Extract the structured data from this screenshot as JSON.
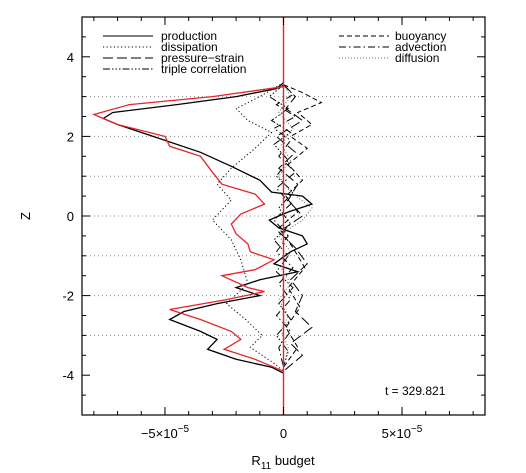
{
  "chart_data": {
    "type": "line",
    "xlabel_main": "R",
    "xlabel_sub": "11",
    "xlabel_rest": " budget",
    "ylabel": "Z",
    "xlim": [
      -8.5e-05,
      8.5e-05
    ],
    "ylim": [
      -5,
      5
    ],
    "x_ticks": [
      {
        "value": -5e-05,
        "mant": "−5×10",
        "exp": "−5"
      },
      {
        "value": 0,
        "mant": "0",
        "exp": ""
      },
      {
        "value": 5e-05,
        "mant": "5×10",
        "exp": "−5"
      }
    ],
    "y_ticks": [
      -4,
      -2,
      0,
      2,
      4
    ],
    "grid": {
      "type": "horizontal-dotted",
      "y": [
        -3,
        -2,
        -1,
        0,
        1,
        2,
        3
      ]
    },
    "annotation": "t = 329.821",
    "legend_left": [
      {
        "name": "production",
        "style": "solid"
      },
      {
        "name": "dissipation",
        "style": "dotted"
      },
      {
        "name": "pressure−strain",
        "style": "longdash"
      },
      {
        "name": "triple correlation",
        "style": "dashdotdotdot"
      }
    ],
    "legend_right": [
      {
        "name": "buoyancy",
        "style": "dashed"
      },
      {
        "name": "advection",
        "style": "dashdot"
      },
      {
        "name": "diffusion",
        "style": "dotted-light"
      }
    ],
    "colors": {
      "red_line": "#e8242b",
      "black": "#000000",
      "grid": "#888888"
    },
    "series": [
      {
        "name": "production",
        "color": "#000000",
        "style": "solid",
        "points": [
          [
            0,
            3.35
          ],
          [
            -3e-06,
            3.2
          ],
          [
            -2e-05,
            3.0
          ],
          [
            -4.5e-05,
            2.8
          ],
          [
            -7.2e-05,
            2.6
          ],
          [
            -7.6e-05,
            2.45
          ],
          [
            -7e-05,
            2.3
          ],
          [
            -5.5e-05,
            2.0
          ],
          [
            -3.5e-05,
            1.6
          ],
          [
            -2.2e-05,
            1.25
          ],
          [
            -1e-05,
            0.9
          ],
          [
            -5e-06,
            0.6
          ],
          [
            8e-06,
            0.5
          ],
          [
            1.2e-05,
            0.3
          ],
          [
            2e-06,
            0.1
          ],
          [
            -6e-06,
            -0.1
          ],
          [
            -2e-06,
            -0.3
          ],
          [
            8e-06,
            -0.5
          ],
          [
            1e-05,
            -0.7
          ],
          [
            3e-06,
            -0.9
          ],
          [
            -4e-06,
            -1.2
          ],
          [
            6e-06,
            -1.4
          ],
          [
            -1e-05,
            -1.6
          ],
          [
            -2e-05,
            -1.8
          ],
          [
            -1e-05,
            -2.0
          ],
          [
            -2.8e-05,
            -2.2
          ],
          [
            -4.2e-05,
            -2.4
          ],
          [
            -4.8e-05,
            -2.6
          ],
          [
            -3.5e-05,
            -2.9
          ],
          [
            -2.8e-05,
            -3.1
          ],
          [
            -3.2e-05,
            -3.35
          ],
          [
            -2e-05,
            -3.6
          ],
          [
            -5e-06,
            -3.8
          ],
          [
            0,
            -3.95
          ]
        ]
      },
      {
        "name": "red",
        "color": "#e8242b",
        "style": "solid",
        "points": [
          [
            0,
            3.25
          ],
          [
            -3e-05,
            3.0
          ],
          [
            -6.5e-05,
            2.8
          ],
          [
            -8e-05,
            2.55
          ],
          [
            -7e-05,
            2.3
          ],
          [
            -5e-05,
            2.0
          ],
          [
            -4.8e-05,
            1.75
          ],
          [
            -3.5e-05,
            1.5
          ],
          [
            -3e-05,
            1.1
          ],
          [
            -2.6e-05,
            0.8
          ],
          [
            -1.2e-05,
            0.55
          ],
          [
            -8e-06,
            0.3
          ],
          [
            -1.8e-05,
            0.05
          ],
          [
            -2.2e-05,
            -0.2
          ],
          [
            -2e-05,
            -0.45
          ],
          [
            -1.5e-05,
            -0.7
          ],
          [
            -1.4e-05,
            -0.9
          ],
          [
            -4e-06,
            -1.1
          ],
          [
            -1.2e-05,
            -1.35
          ],
          [
            -2.6e-05,
            -1.5
          ],
          [
            -1.5e-05,
            -1.8
          ],
          [
            -8e-06,
            -1.9
          ],
          [
            -2.4e-05,
            -2.1
          ],
          [
            -4.8e-05,
            -2.35
          ],
          [
            -3.5e-05,
            -2.6
          ],
          [
            -2.2e-05,
            -2.9
          ],
          [
            -1.8e-05,
            -3.1
          ],
          [
            -2.5e-05,
            -3.35
          ],
          [
            -1.2e-05,
            -3.6
          ],
          [
            0,
            -3.9
          ]
        ]
      },
      {
        "name": "dissipation",
        "color": "#000000",
        "style": "dotted",
        "points": [
          [
            0,
            3.35
          ],
          [
            -1e-05,
            3.0
          ],
          [
            -2e-05,
            2.7
          ],
          [
            -1.5e-05,
            2.4
          ],
          [
            -5e-06,
            2.1
          ],
          [
            -1.2e-05,
            1.7
          ],
          [
            -2.2e-05,
            1.2
          ],
          [
            -2.8e-05,
            0.8
          ],
          [
            -2.2e-05,
            0.4
          ],
          [
            -3e-05,
            -0.1
          ],
          [
            -2.2e-05,
            -0.6
          ],
          [
            -1.8e-05,
            -1.1
          ],
          [
            -1.5e-05,
            -1.7
          ],
          [
            -2.4e-05,
            -2.2
          ],
          [
            -1.6e-05,
            -2.6
          ],
          [
            -9e-06,
            -3.0
          ],
          [
            -1.4e-05,
            -3.3
          ],
          [
            -4e-06,
            -3.7
          ],
          [
            0,
            -3.9
          ]
        ]
      },
      {
        "name": "pressure-strain",
        "color": "#000000",
        "style": "longdash",
        "points": [
          [
            0,
            3.3
          ],
          [
            5e-06,
            3.0
          ],
          [
            1e-06,
            2.7
          ],
          [
            8e-06,
            2.4
          ],
          [
            -3e-06,
            2.0
          ],
          [
            5e-06,
            1.6
          ],
          [
            -2e-06,
            1.2
          ],
          [
            6e-06,
            0.8
          ],
          [
            2e-06,
            0.4
          ],
          [
            8e-06,
            0.0
          ],
          [
            -2e-06,
            -0.4
          ],
          [
            5e-06,
            -0.8
          ],
          [
            1e-05,
            -1.2
          ],
          [
            3e-06,
            -1.6
          ],
          [
            8e-06,
            -2.0
          ],
          [
            5e-06,
            -2.4
          ],
          [
            1.2e-05,
            -2.8
          ],
          [
            3e-06,
            -3.2
          ],
          [
            8e-06,
            -3.5
          ],
          [
            0,
            -3.9
          ]
        ]
      },
      {
        "name": "buoyancy",
        "color": "#000000",
        "style": "dashed",
        "points": [
          [
            0,
            3.3
          ],
          [
            8e-06,
            3.1
          ],
          [
            1.6e-05,
            2.85
          ],
          [
            6e-06,
            2.6
          ],
          [
            1.2e-05,
            2.3
          ],
          [
            3e-06,
            2.0
          ],
          [
            1e-05,
            1.7
          ],
          [
            2e-06,
            1.3
          ],
          [
            8e-06,
            0.9
          ],
          [
            1e-06,
            0.5
          ],
          [
            6e-06,
            0.1
          ],
          [
            -2e-06,
            -0.3
          ],
          [
            4e-06,
            -0.8
          ],
          [
            9e-06,
            -1.3
          ],
          [
            2e-06,
            -1.8
          ],
          [
            7e-06,
            -2.3
          ],
          [
            1e-06,
            -2.8
          ],
          [
            6e-06,
            -3.3
          ],
          [
            0,
            -3.8
          ]
        ]
      },
      {
        "name": "advection",
        "color": "#000000",
        "style": "dashdot",
        "points": [
          [
            0,
            3.3
          ],
          [
            4e-06,
            3.05
          ],
          [
            -3e-06,
            2.8
          ],
          [
            5e-06,
            2.5
          ],
          [
            -4e-06,
            2.2
          ],
          [
            3e-06,
            1.9
          ],
          [
            -2e-06,
            1.5
          ],
          [
            5e-06,
            1.1
          ],
          [
            -3e-06,
            0.7
          ],
          [
            3e-06,
            0.3
          ],
          [
            -4e-06,
            -0.1
          ],
          [
            2e-06,
            -0.5
          ],
          [
            -3e-06,
            -0.9
          ],
          [
            4e-06,
            -1.3
          ],
          [
            -2e-06,
            -1.7
          ],
          [
            3e-06,
            -2.1
          ],
          [
            -3e-06,
            -2.5
          ],
          [
            3e-06,
            -2.9
          ],
          [
            -2e-06,
            -3.3
          ],
          [
            0,
            -3.8
          ]
        ]
      },
      {
        "name": "triple correlation",
        "color": "#000000",
        "style": "dashdotdotdot",
        "points": [
          [
            0,
            3.3
          ],
          [
            -6e-06,
            3.0
          ],
          [
            2e-06,
            2.7
          ],
          [
            -5e-06,
            2.4
          ],
          [
            3e-06,
            2.1
          ],
          [
            -4e-06,
            1.8
          ],
          [
            2e-06,
            1.4
          ],
          [
            -3e-06,
            1.0
          ],
          [
            4e-06,
            0.6
          ],
          [
            -2e-06,
            0.2
          ],
          [
            3e-06,
            -0.2
          ],
          [
            -4e-06,
            -0.6
          ],
          [
            2e-06,
            -1.0
          ],
          [
            -3e-06,
            -1.4
          ],
          [
            4e-06,
            -1.8
          ],
          [
            -2e-06,
            -2.2
          ],
          [
            3e-06,
            -2.6
          ],
          [
            -3e-06,
            -3.0
          ],
          [
            2e-06,
            -3.4
          ],
          [
            0,
            -3.8
          ]
        ]
      },
      {
        "name": "diffusion",
        "color": "#666666",
        "style": "dotted-light",
        "points": [
          [
            0,
            3.3
          ],
          [
            3e-06,
            3.0
          ],
          [
            -2e-06,
            2.6
          ],
          [
            4e-06,
            2.2
          ],
          [
            -1e-06,
            1.8
          ],
          [
            3e-06,
            1.4
          ],
          [
            -2e-06,
            1.0
          ],
          [
            3e-06,
            0.6
          ],
          [
            1.2e-05,
            0.2
          ],
          [
            8e-06,
            -0.1
          ],
          [
            -2e-06,
            -0.5
          ],
          [
            3e-06,
            -0.9
          ],
          [
            -1e-06,
            -1.3
          ],
          [
            3e-06,
            -1.7
          ],
          [
            -2e-06,
            -2.1
          ],
          [
            2e-06,
            -2.5
          ],
          [
            -1e-06,
            -2.9
          ],
          [
            2e-06,
            -3.3
          ],
          [
            0,
            -3.8
          ]
        ]
      }
    ]
  }
}
